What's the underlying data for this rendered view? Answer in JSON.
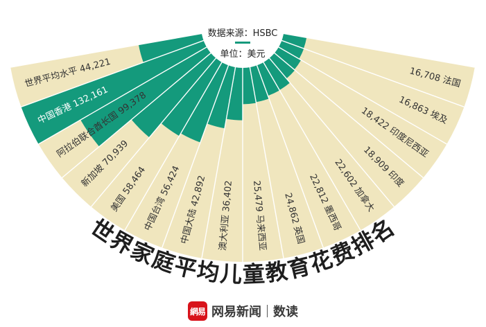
{
  "chart_data": {
    "type": "bar",
    "layout": "radial-semicircle",
    "title": "世界家庭平均儿童教育花费排名",
    "source": "数据来源：HSBC",
    "unit": "单位：美元",
    "categories": [
      "世界平均水平",
      "中国香港",
      "阿拉伯联合酋长国",
      "新加坡",
      "美国",
      "中国台湾",
      "中国大陆",
      "澳大利亚",
      "马来西亚",
      "英国",
      "墨西哥",
      "加拿大",
      "印度",
      "印度尼西亚",
      "埃及",
      "法国"
    ],
    "values": [
      44221,
      132161,
      99378,
      70939,
      58464,
      56424,
      42892,
      36402,
      25479,
      24862,
      22812,
      22602,
      18909,
      18422,
      16863,
      16708
    ],
    "value_labels": [
      "44,221",
      "132,161",
      "99,378",
      "70,939",
      "58,464",
      "56,424",
      "42,892",
      "36,402",
      "25,479",
      "24,862",
      "22,812",
      "22,602",
      "18,909",
      "18,422",
      "16,863",
      "16,708"
    ],
    "colors": {
      "bar": "#149a7c",
      "background": "#f0e6be",
      "divider": "#ffffff",
      "hub": "#ffffff",
      "title": "#1e1e1e",
      "label": "#333333"
    }
  },
  "footer": {
    "logo_text": "網易",
    "brand": "网易新闻",
    "sub_brand": "数读"
  }
}
